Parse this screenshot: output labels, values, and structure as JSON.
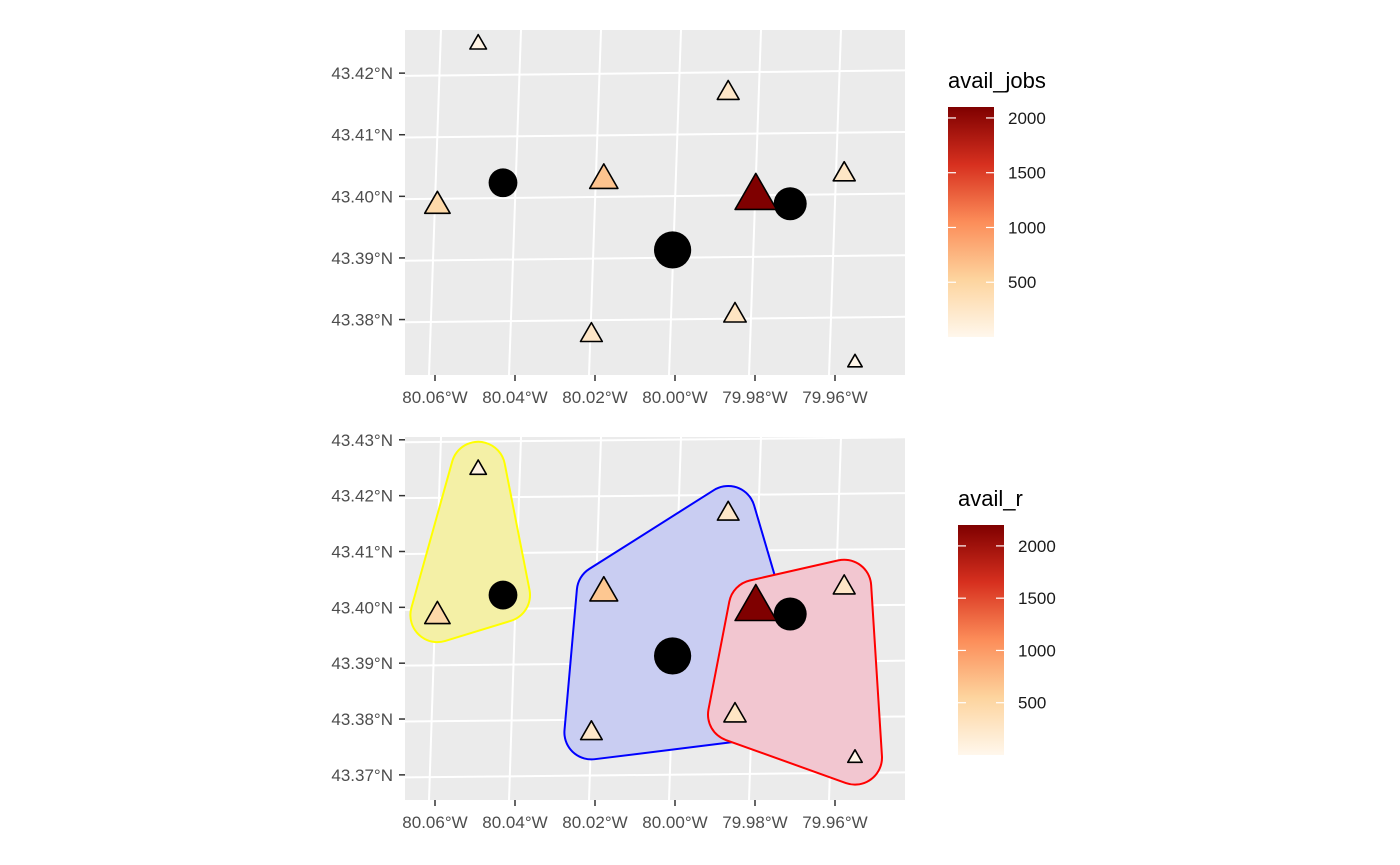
{
  "colors": {
    "panel_bg": "#ebebeb",
    "grid": "#ffffff",
    "point_fill": "#000000",
    "triangle_stroke": "#000000",
    "gradient": [
      "#fff7ec",
      "#fdd49e",
      "#fc8d59",
      "#d7301f",
      "#7f0000"
    ]
  },
  "chart_data": [
    {
      "type": "scatter",
      "title": "",
      "xlabel": "",
      "ylabel": "",
      "xlim": [
        -80.0675,
        -79.9425
      ],
      "ylim": [
        43.371,
        43.427
      ],
      "x_ticks": [
        -80.06,
        -80.04,
        -80.02,
        -80.0,
        -79.98,
        -79.96
      ],
      "x_tick_labels": [
        "80.06°W",
        "80.04°W",
        "80.02°W",
        "80.00°W",
        "79.98°W",
        "79.96°W"
      ],
      "y_ticks": [
        43.38,
        43.39,
        43.4,
        43.41,
        43.42
      ],
      "y_tick_labels": [
        "43.38°N",
        "43.39°N",
        "43.40°N",
        "43.41°N",
        "43.42°N"
      ],
      "grid": true,
      "legend": {
        "title": "avail_jobs",
        "position": "right",
        "breaks": [
          2000,
          1500,
          1000,
          500
        ],
        "range": [
          0,
          2100
        ]
      },
      "series": [
        {
          "marker": "circle",
          "points": [
            {
              "lon": -80.043,
              "lat": 43.4022,
              "size": 2
            },
            {
              "lon": -80.0006,
              "lat": 43.3913,
              "size": 3
            },
            {
              "lon": -79.9712,
              "lat": 43.3988,
              "size": 2.5
            }
          ]
        },
        {
          "marker": "triangle",
          "points": [
            {
              "lon": -80.0594,
              "lat": 43.3986,
              "value": 450
            },
            {
              "lon": -80.0492,
              "lat": 43.4248,
              "value": 60
            },
            {
              "lon": -80.0178,
              "lat": 43.4028,
              "value": 650
            },
            {
              "lon": -80.0209,
              "lat": 43.3776,
              "value": 250
            },
            {
              "lon": -79.9867,
              "lat": 43.4169,
              "value": 250
            },
            {
              "lon": -79.9798,
              "lat": 43.4001,
              "value": 2100
            },
            {
              "lon": -79.985,
              "lat": 43.3808,
              "value": 280
            },
            {
              "lon": -79.9577,
              "lat": 43.4037,
              "value": 260
            },
            {
              "lon": -79.955,
              "lat": 43.3731,
              "value": 20
            }
          ]
        }
      ]
    },
    {
      "type": "scatter",
      "title": "",
      "xlabel": "",
      "ylabel": "",
      "xlim": [
        -80.0675,
        -79.9425
      ],
      "ylim": [
        43.3655,
        43.4305
      ],
      "x_ticks": [
        -80.06,
        -80.04,
        -80.02,
        -80.0,
        -79.98,
        -79.96
      ],
      "x_tick_labels": [
        "80.06°W",
        "80.04°W",
        "80.02°W",
        "80.00°W",
        "79.98°W",
        "79.96°W"
      ],
      "y_ticks": [
        43.37,
        43.38,
        43.39,
        43.4,
        43.41,
        43.42,
        43.43
      ],
      "y_tick_labels": [
        "43.37°N",
        "43.38°N",
        "43.39°N",
        "43.40°N",
        "43.41°N",
        "43.42°N",
        "43.43°N"
      ],
      "grid": true,
      "legend": {
        "title": "avail_r",
        "position": "right",
        "breaks": [
          2000,
          1500,
          1000,
          500
        ],
        "range": [
          0,
          2200
        ]
      },
      "regions": [
        {
          "color": "#ffff00",
          "fill": "#f4f0a6",
          "vertices": [
            [
              -80.0594,
              43.3986
            ],
            [
              -80.0492,
              43.4248
            ],
            [
              -80.043,
              43.4022
            ]
          ]
        },
        {
          "color": "#0000ff",
          "fill": "#c9cdf2",
          "vertices": [
            [
              -80.0209,
              43.3776
            ],
            [
              -80.0178,
              43.4028
            ],
            [
              -79.9867,
              43.4169
            ],
            [
              -79.9798,
              43.4001
            ],
            [
              -79.985,
              43.3808
            ]
          ]
        },
        {
          "color": "#ff0000",
          "fill": "#f2c6d0",
          "vertices": [
            [
              -79.985,
              43.3808
            ],
            [
              -79.9798,
              43.4001
            ],
            [
              -79.9577,
              43.4037
            ],
            [
              -79.955,
              43.3731
            ]
          ]
        }
      ],
      "series": [
        {
          "marker": "circle",
          "points": [
            {
              "lon": -80.043,
              "lat": 43.4022,
              "size": 2
            },
            {
              "lon": -80.0006,
              "lat": 43.3913,
              "size": 3
            },
            {
              "lon": -79.9712,
              "lat": 43.3988,
              "size": 2.5
            }
          ]
        },
        {
          "marker": "triangle",
          "points": [
            {
              "lon": -80.0594,
              "lat": 43.3986,
              "value": 480
            },
            {
              "lon": -80.0492,
              "lat": 43.4248,
              "value": 60
            },
            {
              "lon": -80.0178,
              "lat": 43.4028,
              "value": 650
            },
            {
              "lon": -80.0209,
              "lat": 43.3776,
              "value": 250
            },
            {
              "lon": -79.9867,
              "lat": 43.4169,
              "value": 250
            },
            {
              "lon": -79.9798,
              "lat": 43.4001,
              "value": 2200
            },
            {
              "lon": -79.985,
              "lat": 43.3808,
              "value": 280
            },
            {
              "lon": -79.9577,
              "lat": 43.4037,
              "value": 260
            },
            {
              "lon": -79.955,
              "lat": 43.3731,
              "value": 20
            }
          ]
        }
      ]
    }
  ]
}
